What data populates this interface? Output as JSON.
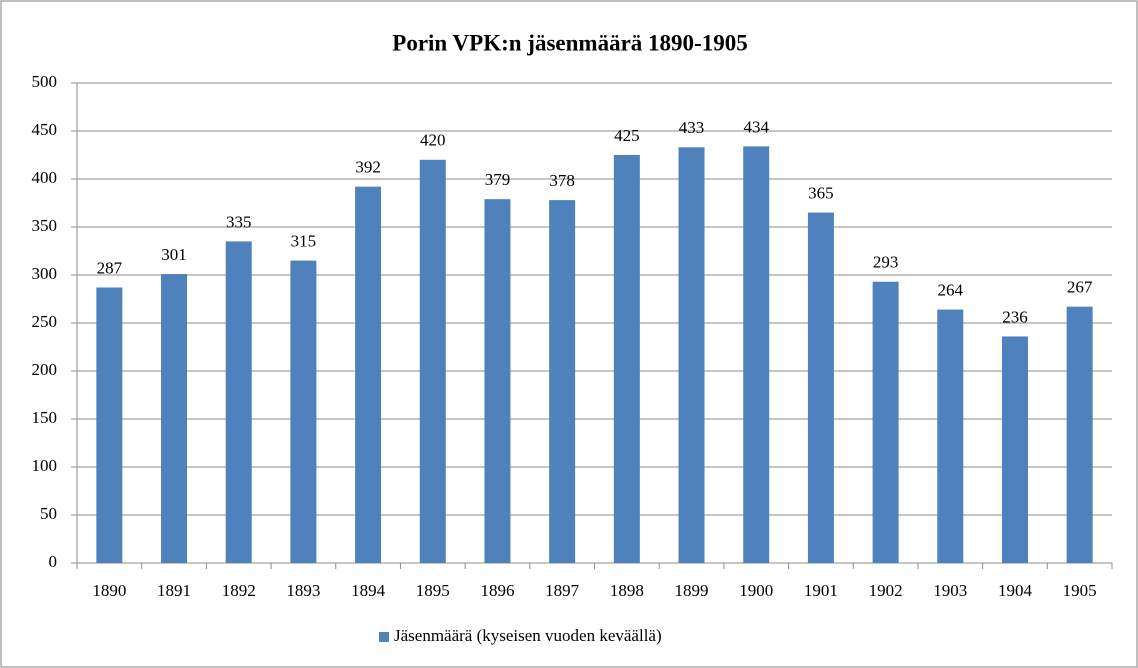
{
  "chart_data": {
    "type": "bar",
    "title": "Porin VPK:n jäsenmäärä 1890-1905",
    "categories": [
      "1890",
      "1891",
      "1892",
      "1893",
      "1894",
      "1895",
      "1896",
      "1897",
      "1898",
      "1899",
      "1900",
      "1901",
      "1902",
      "1903",
      "1904",
      "1905"
    ],
    "series": [
      {
        "name": "Jäsenmäärä (kyseisen vuoden keväällä)",
        "color": "#4f81bd",
        "values": [
          287,
          301,
          335,
          315,
          392,
          420,
          379,
          378,
          425,
          433,
          434,
          365,
          293,
          264,
          236,
          267
        ]
      }
    ],
    "ylim": [
      0,
      500
    ],
    "yticks": [
      0,
      50,
      100,
      150,
      200,
      250,
      300,
      350,
      400,
      450,
      500
    ],
    "grid": true,
    "legend": "bottom"
  }
}
